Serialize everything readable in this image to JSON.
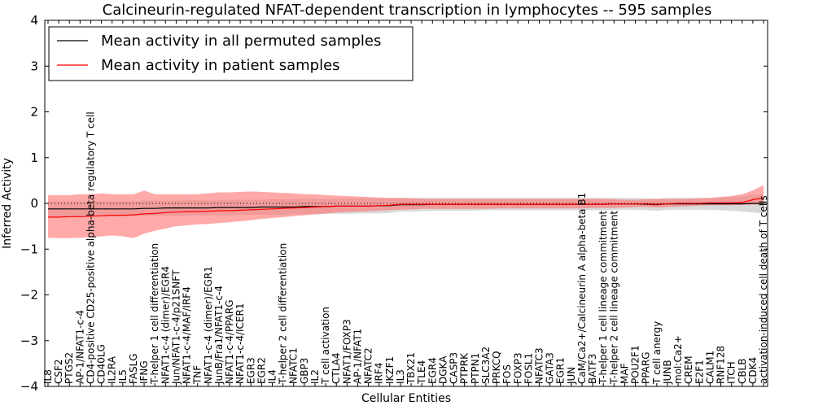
{
  "chart_data": {
    "type": "line",
    "title": "Calcineurin-regulated NFAT-dependent transcription in lymphocytes -- 595 samples",
    "xlabel": "Cellular Entities",
    "ylabel": "Inferred Activity",
    "ylim": [
      -4,
      4
    ],
    "yticks": [
      -4,
      -3,
      -2,
      -1,
      0,
      1,
      2,
      3,
      4
    ],
    "ytick_labels": [
      "−4",
      "−3",
      "−2",
      "−1",
      "0",
      "1",
      "2",
      "3",
      "4"
    ],
    "grid": false,
    "legend_position": "top-left",
    "reference_line": 0,
    "categories": [
      "IL8",
      "CSF2",
      "PTGS2",
      "AP-1/NFAT1-c-4",
      "CD4-positive CD25-positive alpha-beta regulatory T cell",
      "CD40LG",
      "IL2RA",
      "IL5",
      "FASLG",
      "IFNG",
      "T-helper 1 cell differentiation",
      "NFAT1-c-4 (dimer)/EGR4",
      "Jun/NFAT1-c-4/p21SNFT",
      "NFAT1-c-4/MAF/IRF4",
      "TNF",
      "NFAT1-c-4 (dimer)/EGR1",
      "JunB/Fra1/NFAT1-c-4",
      "NFAT1-c-4/PPARG",
      "NFAT1-c-4/ICER1",
      "EGR3",
      "EGR2",
      "IL4",
      "T-helper 2 cell differentiation",
      "NFATC1",
      "GBP3",
      "IL2",
      "T cell activation",
      "CTLA4",
      "NFAT1/FOXP3",
      "AP-1/NFAT1",
      "NFATC2",
      "IRF4",
      "IKZF1",
      "IL3",
      "TBX21",
      "TLE4",
      "EGR4",
      "DGKA",
      "CASP3",
      "PTPRK",
      "PTPN1",
      "SLC3A2",
      "PRKCQ",
      "FOS",
      "FOXP3",
      "FOSL1",
      "NFATC3",
      "GATA3",
      "EGR1",
      "JUN",
      "CaM/Ca2+/Calcineurin A alpha-beta B1",
      "BATF3",
      "T-helper 1 cell lineage commitment",
      "T-helper 2 cell lineage commitment",
      "MAF",
      "POU2F1",
      "PPARG",
      "T cell anergy",
      "JUNB",
      "mol:Ca2+",
      "CREM",
      "E2F1",
      "CALM1",
      "RNF128",
      "ITCH",
      "CBLB",
      "CDK4",
      "activation-induced cell death of T cells"
    ],
    "series": [
      {
        "name": "Mean activity in all permuted samples",
        "color": "#000000",
        "band_color": "#c0c0c0",
        "values": [
          -0.12,
          -0.12,
          -0.12,
          -0.12,
          -0.12,
          -0.12,
          -0.12,
          -0.12,
          -0.12,
          -0.11,
          -0.11,
          -0.1,
          -0.1,
          -0.1,
          -0.1,
          -0.1,
          -0.09,
          -0.09,
          -0.09,
          -0.09,
          -0.08,
          -0.08,
          -0.08,
          -0.08,
          -0.07,
          -0.07,
          -0.07,
          -0.06,
          -0.06,
          -0.06,
          -0.06,
          -0.05,
          -0.05,
          -0.03,
          -0.03,
          -0.03,
          -0.02,
          -0.02,
          -0.02,
          -0.02,
          -0.02,
          -0.02,
          -0.02,
          -0.02,
          -0.02,
          -0.02,
          -0.02,
          -0.02,
          -0.02,
          -0.02,
          -0.02,
          -0.02,
          -0.02,
          -0.01,
          -0.01,
          -0.01,
          -0.02,
          -0.03,
          -0.01,
          -0.01,
          -0.01,
          -0.01,
          -0.01,
          -0.01,
          -0.01,
          -0.01,
          0.0,
          0.0
        ],
        "band_low": [
          -0.28,
          -0.28,
          -0.28,
          -0.28,
          -0.28,
          -0.28,
          -0.28,
          -0.28,
          -0.28,
          -0.28,
          -0.27,
          -0.27,
          -0.27,
          -0.27,
          -0.26,
          -0.26,
          -0.26,
          -0.26,
          -0.26,
          -0.25,
          -0.25,
          -0.25,
          -0.25,
          -0.24,
          -0.24,
          -0.24,
          -0.23,
          -0.23,
          -0.23,
          -0.22,
          -0.22,
          -0.22,
          -0.21,
          -0.18,
          -0.18,
          -0.17,
          -0.16,
          -0.16,
          -0.16,
          -0.16,
          -0.16,
          -0.15,
          -0.15,
          -0.15,
          -0.15,
          -0.15,
          -0.15,
          -0.15,
          -0.15,
          -0.15,
          -0.15,
          -0.15,
          -0.15,
          -0.14,
          -0.14,
          -0.14,
          -0.15,
          -0.16,
          -0.14,
          -0.14,
          -0.14,
          -0.14,
          -0.14,
          -0.15,
          -0.16,
          -0.18,
          -0.2,
          -0.22
        ],
        "band_high": [
          0.05,
          0.05,
          0.05,
          0.05,
          0.05,
          0.05,
          0.05,
          0.05,
          0.05,
          0.06,
          0.06,
          0.06,
          0.06,
          0.07,
          0.07,
          0.07,
          0.07,
          0.08,
          0.08,
          0.08,
          0.08,
          0.09,
          0.09,
          0.09,
          0.1,
          0.1,
          0.1,
          0.1,
          0.11,
          0.11,
          0.11,
          0.11,
          0.11,
          0.12,
          0.12,
          0.12,
          0.12,
          0.12,
          0.12,
          0.12,
          0.12,
          0.12,
          0.12,
          0.12,
          0.12,
          0.12,
          0.12,
          0.12,
          0.12,
          0.12,
          0.12,
          0.12,
          0.12,
          0.12,
          0.12,
          0.12,
          0.11,
          0.1,
          0.12,
          0.12,
          0.12,
          0.12,
          0.12,
          0.13,
          0.14,
          0.15,
          0.18,
          0.2
        ]
      },
      {
        "name": "Mean activity in patient samples",
        "color": "#ff0000",
        "band_color": "#ff7070",
        "values": [
          -0.3,
          -0.3,
          -0.29,
          -0.29,
          -0.28,
          -0.27,
          -0.26,
          -0.26,
          -0.25,
          -0.23,
          -0.22,
          -0.2,
          -0.19,
          -0.18,
          -0.18,
          -0.17,
          -0.16,
          -0.16,
          -0.15,
          -0.14,
          -0.13,
          -0.12,
          -0.11,
          -0.1,
          -0.09,
          -0.08,
          -0.07,
          -0.06,
          -0.06,
          -0.06,
          -0.06,
          -0.05,
          -0.04,
          -0.02,
          -0.02,
          -0.02,
          -0.02,
          -0.02,
          -0.02,
          -0.02,
          -0.02,
          -0.02,
          -0.02,
          -0.02,
          -0.02,
          -0.02,
          -0.02,
          -0.02,
          -0.02,
          -0.02,
          -0.02,
          -0.02,
          -0.02,
          -0.01,
          -0.01,
          -0.01,
          -0.01,
          -0.02,
          -0.01,
          0.0,
          0.0,
          0.0,
          0.01,
          0.01,
          0.01,
          0.02,
          0.08,
          0.12
        ],
        "band_low": [
          -0.75,
          -0.76,
          -0.76,
          -0.75,
          -0.74,
          -0.72,
          -0.7,
          -0.72,
          -0.76,
          -0.66,
          -0.6,
          -0.55,
          -0.5,
          -0.48,
          -0.46,
          -0.45,
          -0.43,
          -0.41,
          -0.39,
          -0.37,
          -0.34,
          -0.32,
          -0.3,
          -0.28,
          -0.26,
          -0.24,
          -0.22,
          -0.2,
          -0.19,
          -0.18,
          -0.17,
          -0.16,
          -0.15,
          -0.14,
          -0.13,
          -0.12,
          -0.12,
          -0.12,
          -0.12,
          -0.12,
          -0.12,
          -0.12,
          -0.11,
          -0.11,
          -0.11,
          -0.11,
          -0.11,
          -0.11,
          -0.11,
          -0.11,
          -0.11,
          -0.1,
          -0.1,
          -0.1,
          -0.09,
          -0.08,
          -0.08,
          -0.09,
          -0.08,
          -0.07,
          -0.06,
          -0.05,
          -0.04,
          -0.04,
          -0.04,
          -0.03,
          -0.03,
          -0.02
        ],
        "band_high": [
          0.18,
          0.18,
          0.18,
          0.2,
          0.2,
          0.22,
          0.2,
          0.2,
          0.2,
          0.28,
          0.2,
          0.2,
          0.2,
          0.2,
          0.2,
          0.22,
          0.24,
          0.24,
          0.25,
          0.26,
          0.25,
          0.24,
          0.23,
          0.22,
          0.2,
          0.2,
          0.18,
          0.17,
          0.16,
          0.15,
          0.14,
          0.13,
          0.12,
          0.12,
          0.11,
          0.1,
          0.1,
          0.1,
          0.1,
          0.1,
          0.1,
          0.1,
          0.1,
          0.1,
          0.1,
          0.1,
          0.1,
          0.1,
          0.1,
          0.1,
          0.1,
          0.1,
          0.1,
          0.09,
          0.08,
          0.08,
          0.09,
          0.1,
          0.1,
          0.1,
          0.1,
          0.11,
          0.12,
          0.14,
          0.16,
          0.2,
          0.28,
          0.4
        ]
      }
    ]
  }
}
